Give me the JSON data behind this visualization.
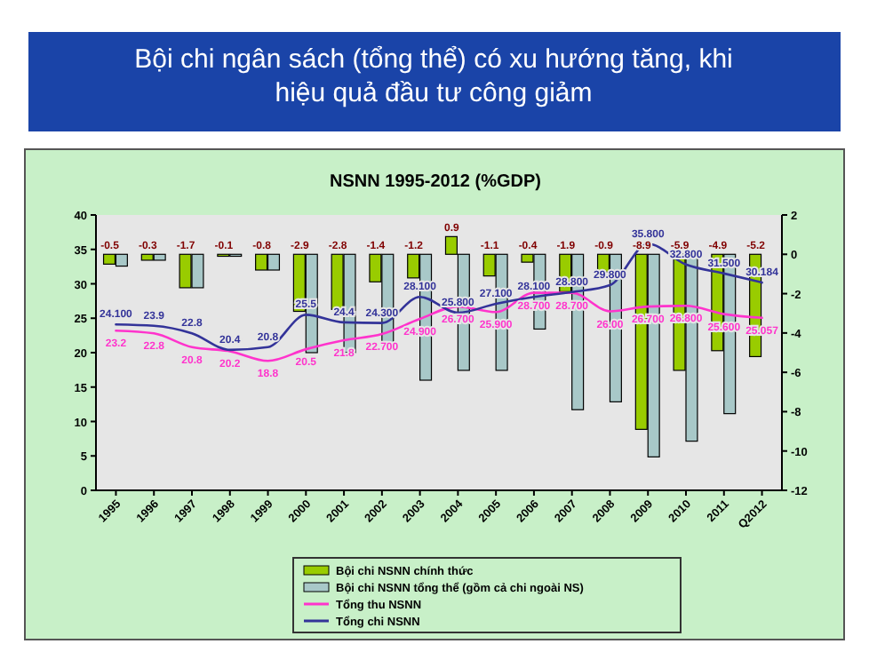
{
  "chart_data": {
    "type": "bar",
    "title": "Bội chi ngân sách (tổng thể) có xu hướng tăng, khi hiệu quả đầu tư công giảm",
    "subtitle": "NSNN 1995-2012 (%GDP)",
    "categories": [
      "1995",
      "1996",
      "1997",
      "1998",
      "1999",
      "2000",
      "2001",
      "2002",
      "2003",
      "2004",
      "2005",
      "2006",
      "2007",
      "2008",
      "2009",
      "2010",
      "2011",
      "Q2012"
    ],
    "series": [
      {
        "name": "Bội chi NSNN chính thức",
        "axis": "y2",
        "color": "#99cc00",
        "values": [
          -0.5,
          -0.3,
          -1.7,
          -0.1,
          -0.8,
          -2.9,
          -2.8,
          -1.4,
          -1.2,
          0.9,
          -1.1,
          -0.4,
          -1.9,
          -0.9,
          -8.9,
          -5.9,
          -4.9,
          -5.2
        ],
        "value_labels": [
          "-0.5",
          "-0.3",
          "-1.7",
          "-0.1",
          "-0.8",
          "-2.9",
          "-2.8",
          "-1.4",
          "-1.2",
          "0.9",
          "-1.1",
          "-0.4",
          "-1.9",
          "-0.9",
          "-8.9",
          "-5.9",
          "-4.9",
          "-5.2"
        ]
      },
      {
        "name": "Bội chi NSNN tổng thể (gồm cả chi ngoài NS)",
        "axis": "y2",
        "color": "#a8c8c8",
        "values": [
          -0.6,
          -0.3,
          -1.7,
          -0.1,
          -0.8,
          -5.0,
          -5.0,
          -4.7,
          -6.4,
          -5.9,
          -5.9,
          -3.8,
          -7.9,
          -7.5,
          -10.3,
          -9.5,
          -8.1,
          null
        ]
      },
      {
        "name": "Tổng thu NSNN",
        "type": "line",
        "axis": "y",
        "color": "#ff33cc",
        "values": [
          23.2,
          22.8,
          20.8,
          20.2,
          18.8,
          20.5,
          21.8,
          22.7,
          24.9,
          26.7,
          25.9,
          28.7,
          28.7,
          26.0,
          26.7,
          26.8,
          25.6,
          25.057
        ],
        "value_labels": [
          "23.2",
          "22.8",
          "20.8",
          "20.2",
          "18.8",
          "20.5",
          "21.8",
          "22.700",
          "24.900",
          "26.700",
          "25.900",
          "28.700",
          "28.700",
          "26.00",
          "26.700",
          "26.800",
          "25.600",
          "25.057"
        ]
      },
      {
        "name": "Tổng chi NSNN",
        "type": "line",
        "axis": "y",
        "color": "#333399",
        "values": [
          24.1,
          23.9,
          22.8,
          20.4,
          20.8,
          25.5,
          24.4,
          24.3,
          28.1,
          25.8,
          27.1,
          28.1,
          28.8,
          29.8,
          35.8,
          32.8,
          31.5,
          30.184
        ],
        "value_labels": [
          "24.100",
          "23.9",
          "22.8",
          "20.4",
          "20.8",
          "25.5",
          "24.4",
          "24.300",
          "28.100",
          "25.800",
          "27.100",
          "28.100",
          "28.800",
          "29.800",
          "35.800",
          "32.800",
          "31.500",
          "30.184"
        ]
      }
    ],
    "ylim": [
      0,
      40
    ],
    "yticks": [
      0,
      5,
      10,
      15,
      20,
      25,
      30,
      35,
      40
    ],
    "y2lim": [
      -12,
      2
    ],
    "y2ticks": [
      -12,
      -10,
      -8,
      -6,
      -4,
      -2,
      0,
      2
    ],
    "legend": "bottom",
    "grid": false
  }
}
